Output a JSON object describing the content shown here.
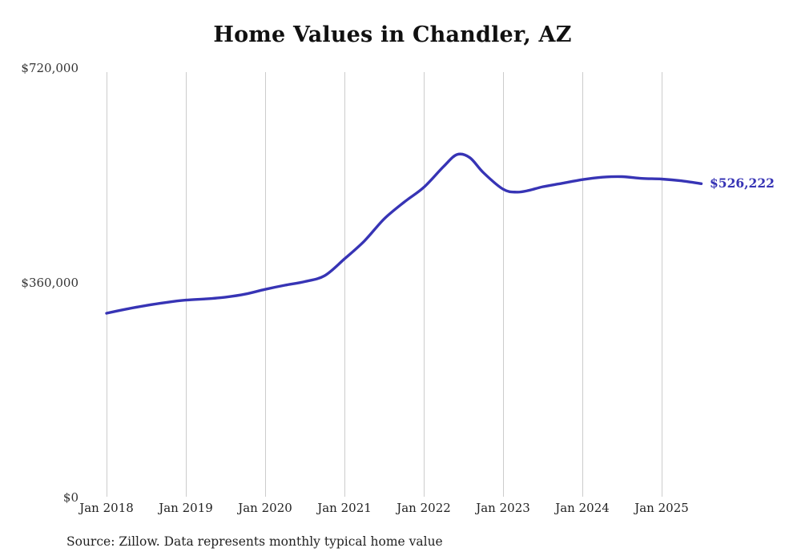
{
  "page": {
    "title": "Home Values in Chandler, AZ",
    "source_note": "Source: Zillow. Data represents monthly typical home value"
  },
  "chart_data": {
    "type": "line",
    "title": "Home Values in Chandler, AZ",
    "xlabel": "",
    "ylabel": "",
    "ylim": [
      0,
      720000
    ],
    "yticks": [
      0,
      360000,
      720000
    ],
    "ytick_labels": [
      "$0",
      "$360,000",
      "$720,000"
    ],
    "xtick_years": [
      2018,
      2019,
      2020,
      2021,
      2022,
      2023,
      2024,
      2025
    ],
    "xtick_labels": [
      "Jan 2018",
      "Jan 2019",
      "Jan 2020",
      "Jan 2021",
      "Jan 2022",
      "Jan 2023",
      "Jan 2024",
      "Jan 2025"
    ],
    "grid": "vertical-only",
    "legend": "none",
    "line_color": "#3734b5",
    "label_color": "#3734b5",
    "end_label": "$526,222",
    "final_value": 526222,
    "series": [
      {
        "name": "Typical home value",
        "x": [
          2018.0,
          2018.25,
          2018.5,
          2018.75,
          2019.0,
          2019.25,
          2019.5,
          2019.75,
          2020.0,
          2020.25,
          2020.5,
          2020.75,
          2021.0,
          2021.25,
          2021.5,
          2021.75,
          2022.0,
          2022.25,
          2022.42,
          2022.58,
          2022.75,
          2023.0,
          2023.17,
          2023.33,
          2023.5,
          2023.75,
          2024.0,
          2024.25,
          2024.5,
          2024.75,
          2025.0,
          2025.25,
          2025.5
        ],
        "values": [
          309000,
          316000,
          322000,
          327000,
          331000,
          333000,
          336000,
          341000,
          349000,
          356000,
          362000,
          372000,
          400000,
          430000,
          467000,
          495000,
          520000,
          555000,
          575000,
          570000,
          545000,
          517000,
          512000,
          515000,
          521000,
          527000,
          533000,
          537000,
          538000,
          535000,
          534000,
          531000,
          526222
        ]
      }
    ],
    "source": "Source: Zillow. Data represents monthly typical home value"
  }
}
